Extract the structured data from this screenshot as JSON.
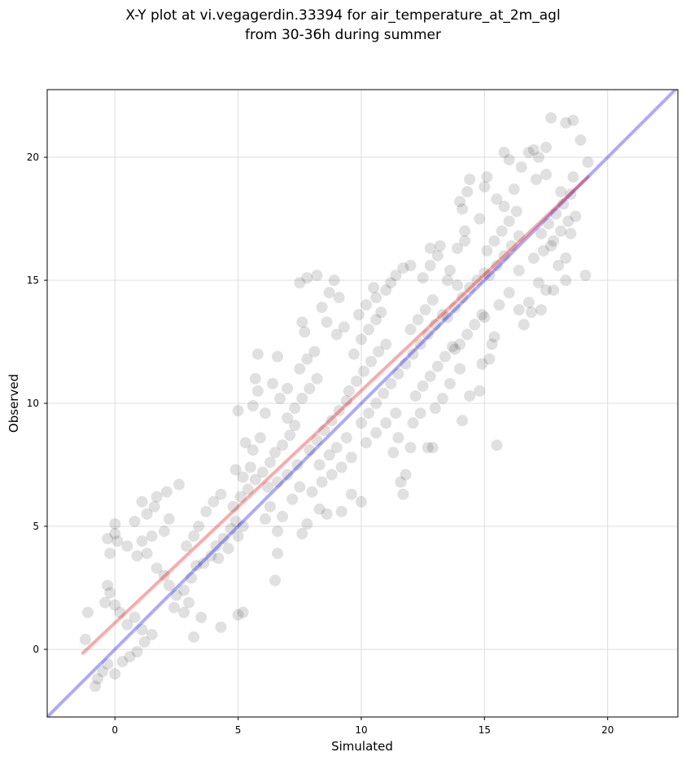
{
  "chart_data": {
    "type": "scatter",
    "title_lines": [
      "X-Y plot at vi.vegagerdin.33394 for air_temperature_at_2m_agl",
      "from 30-36h during summer"
    ],
    "xlabel": "Simulated",
    "ylabel": "Observed",
    "xlim": [
      -2.75,
      22.85
    ],
    "ylim": [
      -2.75,
      22.75
    ],
    "xticks": [
      0,
      5,
      10,
      15,
      20
    ],
    "yticks": [
      0,
      5,
      10,
      15,
      20
    ],
    "grid": true,
    "point_color": "#000000",
    "point_opacity": 0.12,
    "reference_line": {
      "name": "1:1",
      "color": "#0000ee",
      "from": [
        -2.75,
        -2.75
      ],
      "to": [
        22.85,
        22.85
      ]
    },
    "regression_line": {
      "color": "#ee0000",
      "from": [
        -1.3,
        -0.15
      ],
      "to": [
        19.2,
        19.2
      ]
    },
    "points": [
      [
        -0.8,
        -1.5
      ],
      [
        -0.7,
        -1.2
      ],
      [
        -0.5,
        -0.9
      ],
      [
        -0.3,
        -0.6
      ],
      [
        0.0,
        -1.0
      ],
      [
        0.3,
        -0.5
      ],
      [
        0.6,
        -0.3
      ],
      [
        0.9,
        -0.1
      ],
      [
        1.2,
        0.3
      ],
      [
        1.5,
        0.6
      ],
      [
        -1.2,
        0.4
      ],
      [
        -1.1,
        1.5
      ],
      [
        -0.4,
        1.9
      ],
      [
        -0.2,
        2.3
      ],
      [
        -0.3,
        2.6
      ],
      [
        0.0,
        1.8
      ],
      [
        0.2,
        1.5
      ],
      [
        0.5,
        1.0
      ],
      [
        0.8,
        1.3
      ],
      [
        1.1,
        0.8
      ],
      [
        -0.2,
        3.9
      ],
      [
        -0.3,
        4.5
      ],
      [
        0.0,
        4.7
      ],
      [
        0.1,
        4.4
      ],
      [
        0.0,
        5.1
      ],
      [
        0.5,
        4.2
      ],
      [
        0.9,
        3.8
      ],
      [
        1.1,
        4.4
      ],
      [
        0.8,
        5.2
      ],
      [
        1.3,
        5.5
      ],
      [
        1.1,
        6.0
      ],
      [
        1.6,
        5.8
      ],
      [
        1.7,
        6.2
      ],
      [
        2.1,
        6.4
      ],
      [
        2.6,
        6.7
      ],
      [
        2.2,
        5.3
      ],
      [
        2.0,
        4.8
      ],
      [
        1.5,
        4.6
      ],
      [
        1.3,
        3.9
      ],
      [
        1.7,
        3.3
      ],
      [
        2.0,
        3.0
      ],
      [
        2.2,
        2.6
      ],
      [
        2.5,
        2.2
      ],
      [
        2.8,
        2.4
      ],
      [
        3.1,
        2.9
      ],
      [
        3.3,
        3.4
      ],
      [
        2.4,
        1.7
      ],
      [
        2.8,
        1.5
      ],
      [
        3.0,
        1.9
      ],
      [
        3.5,
        1.3
      ],
      [
        3.2,
        0.5
      ],
      [
        4.3,
        0.9
      ],
      [
        5.0,
        1.4
      ],
      [
        5.2,
        1.5
      ],
      [
        2.9,
        4.2
      ],
      [
        3.2,
        4.6
      ],
      [
        3.4,
        5.0
      ],
      [
        3.7,
        5.6
      ],
      [
        4.0,
        6.0
      ],
      [
        4.3,
        6.3
      ],
      [
        3.6,
        3.5
      ],
      [
        3.9,
        3.8
      ],
      [
        4.1,
        4.2
      ],
      [
        4.4,
        4.5
      ],
      [
        4.7,
        4.9
      ],
      [
        4.9,
        5.2
      ],
      [
        4.2,
        3.7
      ],
      [
        4.6,
        4.1
      ],
      [
        5.0,
        4.6
      ],
      [
        5.2,
        5.0
      ],
      [
        4.8,
        5.8
      ],
      [
        5.1,
        6.2
      ],
      [
        5.4,
        6.5
      ],
      [
        5.7,
        6.9
      ],
      [
        5.5,
        7.4
      ],
      [
        5.2,
        7.0
      ],
      [
        4.9,
        7.3
      ],
      [
        5.6,
        8.1
      ],
      [
        5.9,
        8.6
      ],
      [
        5.3,
        8.4
      ],
      [
        5.0,
        9.7
      ],
      [
        5.6,
        9.9
      ],
      [
        6.1,
        9.6
      ],
      [
        5.8,
        10.5
      ],
      [
        5.7,
        11.0
      ],
      [
        5.8,
        12.0
      ],
      [
        6.6,
        11.9
      ],
      [
        6.4,
        10.8
      ],
      [
        6.7,
        10.2
      ],
      [
        7.0,
        10.6
      ],
      [
        6.0,
        7.2
      ],
      [
        6.3,
        7.6
      ],
      [
        6.5,
        8.0
      ],
      [
        6.8,
        8.3
      ],
      [
        7.1,
        8.7
      ],
      [
        7.3,
        9.1
      ],
      [
        6.2,
        6.6
      ],
      [
        6.6,
        6.8
      ],
      [
        7.0,
        7.1
      ],
      [
        7.4,
        7.5
      ],
      [
        6.1,
        5.3
      ],
      [
        6.3,
        5.8
      ],
      [
        6.6,
        4.8
      ],
      [
        6.8,
        5.4
      ],
      [
        7.2,
        6.1
      ],
      [
        7.5,
        6.6
      ],
      [
        6.6,
        3.9
      ],
      [
        6.5,
        2.8
      ],
      [
        7.8,
        5.1
      ],
      [
        7.6,
        4.7
      ],
      [
        7.0,
        9.4
      ],
      [
        7.3,
        9.8
      ],
      [
        7.6,
        10.2
      ],
      [
        7.9,
        10.6
      ],
      [
        8.2,
        11.0
      ],
      [
        7.5,
        11.4
      ],
      [
        7.8,
        11.8
      ],
      [
        8.1,
        12.1
      ],
      [
        7.7,
        12.9
      ],
      [
        7.6,
        13.3
      ],
      [
        7.5,
        14.9
      ],
      [
        7.8,
        15.1
      ],
      [
        8.2,
        15.2
      ],
      [
        8.4,
        13.9
      ],
      [
        8.7,
        14.5
      ],
      [
        8.9,
        15.0
      ],
      [
        9.1,
        14.3
      ],
      [
        8.6,
        13.3
      ],
      [
        9.0,
        12.8
      ],
      [
        9.3,
        13.1
      ],
      [
        7.9,
        8.1
      ],
      [
        8.2,
        8.5
      ],
      [
        8.5,
        8.9
      ],
      [
        8.8,
        9.3
      ],
      [
        9.1,
        9.7
      ],
      [
        9.4,
        10.1
      ],
      [
        8.3,
        7.5
      ],
      [
        8.7,
        7.9
      ],
      [
        9.0,
        8.2
      ],
      [
        9.4,
        8.6
      ],
      [
        8.0,
        6.4
      ],
      [
        8.4,
        6.8
      ],
      [
        8.8,
        7.1
      ],
      [
        9.2,
        7.4
      ],
      [
        9.6,
        7.8
      ],
      [
        8.6,
        5.5
      ],
      [
        9.2,
        5.6
      ],
      [
        9.6,
        6.3
      ],
      [
        10.0,
        6.0
      ],
      [
        8.3,
        5.7
      ],
      [
        9.5,
        10.5
      ],
      [
        9.8,
        10.9
      ],
      [
        10.1,
        11.3
      ],
      [
        10.4,
        11.7
      ],
      [
        10.7,
        12.1
      ],
      [
        11.0,
        12.4
      ],
      [
        9.7,
        12.0
      ],
      [
        10.0,
        12.6
      ],
      [
        10.3,
        13.0
      ],
      [
        10.6,
        13.4
      ],
      [
        9.9,
        13.6
      ],
      [
        10.2,
        14.0
      ],
      [
        10.6,
        14.3
      ],
      [
        11.0,
        14.6
      ],
      [
        10.8,
        13.7
      ],
      [
        11.4,
        15.2
      ],
      [
        11.7,
        15.5
      ],
      [
        11.2,
        14.9
      ],
      [
        12.0,
        15.6
      ],
      [
        10.5,
        14.7
      ],
      [
        10.0,
        9.2
      ],
      [
        10.3,
        9.6
      ],
      [
        10.6,
        10.0
      ],
      [
        10.9,
        10.4
      ],
      [
        11.2,
        10.8
      ],
      [
        11.5,
        11.2
      ],
      [
        10.2,
        8.4
      ],
      [
        10.6,
        8.8
      ],
      [
        11.0,
        9.2
      ],
      [
        11.4,
        9.6
      ],
      [
        11.5,
        8.6
      ],
      [
        12.0,
        8.2
      ],
      [
        12.1,
        9.2
      ],
      [
        12.4,
        9.6
      ],
      [
        11.8,
        7.1
      ],
      [
        11.6,
        6.8
      ],
      [
        11.7,
        6.3
      ],
      [
        12.7,
        8.2
      ],
      [
        12.9,
        8.2
      ],
      [
        11.3,
        8.0
      ],
      [
        11.8,
        11.6
      ],
      [
        12.1,
        12.0
      ],
      [
        12.4,
        12.4
      ],
      [
        12.7,
        12.8
      ],
      [
        13.0,
        13.2
      ],
      [
        13.3,
        13.6
      ],
      [
        12.0,
        13.0
      ],
      [
        12.3,
        13.4
      ],
      [
        12.6,
        13.8
      ],
      [
        12.9,
        14.2
      ],
      [
        12.2,
        10.3
      ],
      [
        12.5,
        10.7
      ],
      [
        12.8,
        11.1
      ],
      [
        13.1,
        11.5
      ],
      [
        13.4,
        11.9
      ],
      [
        13.7,
        12.3
      ],
      [
        13.3,
        10.2
      ],
      [
        13.0,
        9.8
      ],
      [
        13.6,
        10.8
      ],
      [
        14.0,
        11.4
      ],
      [
        12.5,
        15.1
      ],
      [
        12.8,
        15.6
      ],
      [
        13.1,
        16.0
      ],
      [
        12.8,
        16.3
      ],
      [
        13.2,
        16.4
      ],
      [
        13.6,
        15.4
      ],
      [
        13.9,
        16.3
      ],
      [
        14.2,
        16.6
      ],
      [
        13.5,
        15.0
      ],
      [
        13.9,
        14.8
      ],
      [
        13.5,
        13.5
      ],
      [
        13.8,
        13.9
      ],
      [
        14.1,
        14.3
      ],
      [
        14.4,
        14.7
      ],
      [
        14.7,
        15.0
      ],
      [
        15.0,
        15.3
      ],
      [
        14.0,
        12.4
      ],
      [
        14.3,
        12.8
      ],
      [
        14.6,
        13.2
      ],
      [
        14.9,
        13.6
      ],
      [
        14.1,
        17.9
      ],
      [
        14.3,
        18.6
      ],
      [
        14.0,
        18.2
      ],
      [
        14.4,
        19.1
      ],
      [
        15.0,
        18.8
      ],
      [
        15.1,
        19.2
      ],
      [
        14.8,
        17.5
      ],
      [
        14.2,
        17.0
      ],
      [
        15.5,
        18.3
      ],
      [
        15.8,
        18.0
      ],
      [
        15.1,
        16.2
      ],
      [
        15.4,
        16.6
      ],
      [
        15.7,
        17.0
      ],
      [
        16.0,
        17.4
      ],
      [
        16.3,
        17.8
      ],
      [
        15.2,
        15.2
      ],
      [
        15.5,
        15.6
      ],
      [
        15.8,
        16.0
      ],
      [
        16.1,
        16.4
      ],
      [
        16.4,
        16.8
      ],
      [
        15.4,
        12.7
      ],
      [
        15.3,
        12.4
      ],
      [
        15.0,
        13.5
      ],
      [
        15.6,
        14.0
      ],
      [
        16.0,
        14.5
      ],
      [
        16.4,
        13.8
      ],
      [
        16.6,
        13.2
      ],
      [
        16.8,
        14.1
      ],
      [
        15.2,
        11.8
      ],
      [
        14.8,
        10.5
      ],
      [
        14.1,
        9.3
      ],
      [
        15.5,
        8.3
      ],
      [
        14.9,
        11.6
      ],
      [
        14.4,
        10.3
      ],
      [
        13.8,
        12.2
      ],
      [
        16.2,
        18.7
      ],
      [
        16.5,
        19.6
      ],
      [
        16.0,
        19.9
      ],
      [
        15.8,
        20.2
      ],
      [
        16.8,
        20.2
      ],
      [
        17.0,
        20.3
      ],
      [
        17.2,
        20.0
      ],
      [
        17.5,
        20.4
      ],
      [
        17.1,
        19.1
      ],
      [
        17.5,
        19.3
      ],
      [
        17.7,
        21.6
      ],
      [
        18.3,
        21.4
      ],
      [
        18.6,
        21.5
      ],
      [
        18.9,
        20.7
      ],
      [
        19.2,
        19.8
      ],
      [
        17.3,
        16.9
      ],
      [
        17.6,
        17.3
      ],
      [
        17.9,
        17.7
      ],
      [
        18.2,
        18.1
      ],
      [
        18.5,
        18.5
      ],
      [
        17.0,
        15.9
      ],
      [
        17.4,
        16.2
      ],
      [
        17.8,
        16.6
      ],
      [
        18.1,
        17.0
      ],
      [
        18.4,
        17.4
      ],
      [
        17.2,
        14.9
      ],
      [
        17.5,
        14.6
      ],
      [
        17.3,
        13.8
      ],
      [
        16.9,
        13.7
      ],
      [
        18.0,
        15.6
      ],
      [
        18.3,
        15.9
      ],
      [
        18.5,
        16.9
      ],
      [
        18.7,
        17.6
      ],
      [
        19.1,
        15.2
      ],
      [
        18.3,
        15.0
      ],
      [
        17.8,
        14.6
      ],
      [
        18.6,
        19.2
      ],
      [
        18.1,
        18.6
      ],
      [
        17.7,
        16.4
      ],
      [
        16.4,
        15.4
      ]
    ]
  }
}
